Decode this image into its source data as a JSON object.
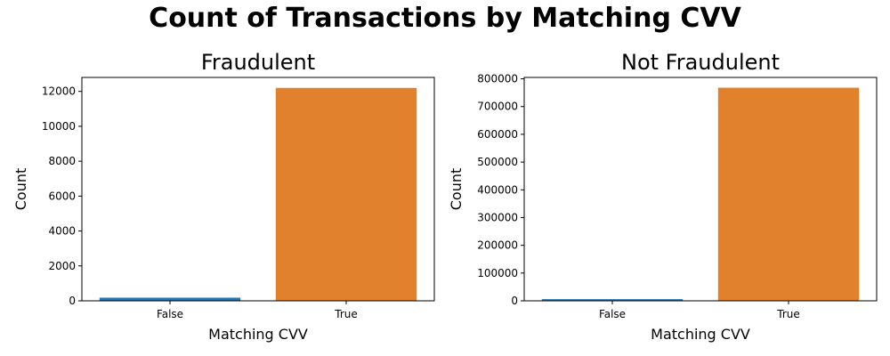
{
  "title": "Count of Transactions by Matching CVV",
  "colors": {
    "false_bar": "#1f77b4",
    "true_bar": "#e1812c"
  },
  "chart_data": [
    {
      "type": "bar",
      "title": "Fraudulent",
      "xlabel": "Matching CVV",
      "ylabel": "Count",
      "categories": [
        "False",
        "True"
      ],
      "values": [
        180,
        12200
      ],
      "ylim": [
        0,
        12800
      ],
      "yticks": [
        0,
        2000,
        4000,
        6000,
        8000,
        10000,
        12000
      ],
      "ytick_labels": [
        "0",
        "2000",
        "4000",
        "6000",
        "8000",
        "10000",
        "12000"
      ],
      "grid": false
    },
    {
      "type": "bar",
      "title": "Not Fraudulent",
      "xlabel": "Matching CVV",
      "ylabel": "Count",
      "categories": [
        "False",
        "True"
      ],
      "values": [
        6000,
        768000
      ],
      "ylim": [
        0,
        805000
      ],
      "yticks": [
        0,
        100000,
        200000,
        300000,
        400000,
        500000,
        600000,
        700000,
        800000
      ],
      "ytick_labels": [
        "0",
        "100000",
        "200000",
        "300000",
        "400000",
        "500000",
        "600000",
        "700000",
        "800000"
      ],
      "grid": false
    }
  ]
}
